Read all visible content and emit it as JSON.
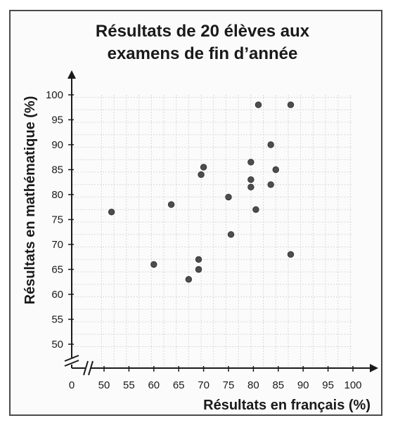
{
  "chart_data": {
    "type": "scatter",
    "title": [
      "Résultats de 20 élèves aux",
      "examens de fin d’année"
    ],
    "xlabel": "Résultats en français (%)",
    "ylabel": "Résultats en mathématique (%)",
    "x_origin_label": "0",
    "x_ticks": [
      50,
      55,
      60,
      65,
      70,
      75,
      80,
      85,
      90,
      95,
      100
    ],
    "y_ticks": [
      50,
      55,
      60,
      65,
      70,
      75,
      80,
      85,
      90,
      95,
      100
    ],
    "xlim": [
      47,
      100
    ],
    "ylim": [
      47,
      100
    ],
    "grid": true,
    "axis_break": true,
    "point_color": "#4d4d4d",
    "points": [
      {
        "x": 51.5,
        "y": 76.5
      },
      {
        "x": 60,
        "y": 66
      },
      {
        "x": 63.5,
        "y": 78
      },
      {
        "x": 67,
        "y": 63
      },
      {
        "x": 69,
        "y": 67
      },
      {
        "x": 69,
        "y": 65
      },
      {
        "x": 69.5,
        "y": 84
      },
      {
        "x": 70,
        "y": 85.5
      },
      {
        "x": 75,
        "y": 79.5
      },
      {
        "x": 75.5,
        "y": 72
      },
      {
        "x": 79.5,
        "y": 86.5
      },
      {
        "x": 79.5,
        "y": 83
      },
      {
        "x": 79.5,
        "y": 81.5
      },
      {
        "x": 80.5,
        "y": 77
      },
      {
        "x": 81,
        "y": 98
      },
      {
        "x": 83.5,
        "y": 90
      },
      {
        "x": 83.5,
        "y": 82
      },
      {
        "x": 84.5,
        "y": 85
      },
      {
        "x": 87.5,
        "y": 98
      },
      {
        "x": 87.5,
        "y": 68
      }
    ]
  }
}
